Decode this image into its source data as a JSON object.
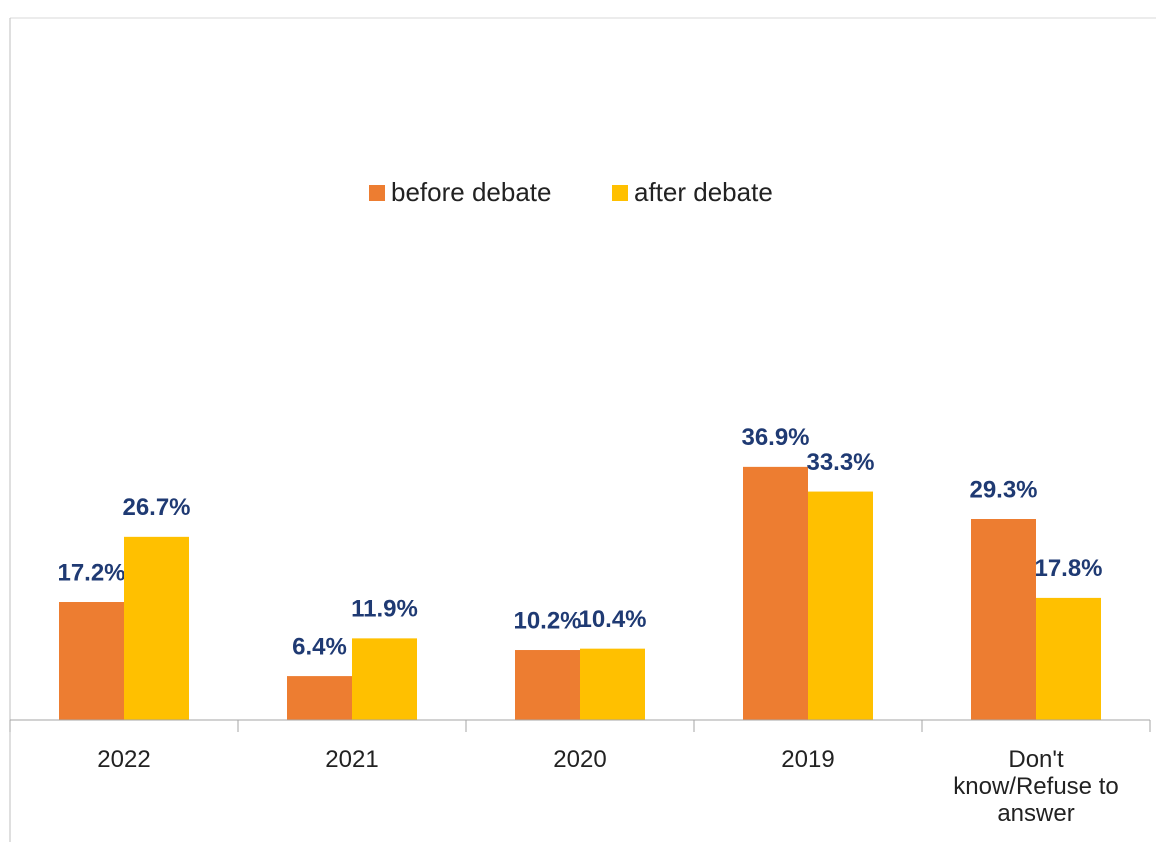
{
  "chart_data": {
    "type": "bar",
    "categories": [
      "2022",
      "2021",
      "2020",
      "2019",
      "Don't know/Refuse to answer"
    ],
    "series": [
      {
        "name": "before debate",
        "color": "#ed7d31",
        "values": [
          17.2,
          6.4,
          10.2,
          36.9,
          29.3
        ],
        "value_labels": [
          "17.2%",
          "6.4%",
          "10.2%",
          "36.9%",
          "29.3%"
        ]
      },
      {
        "name": "after debate",
        "color": "#ffc000",
        "values": [
          26.7,
          11.9,
          10.4,
          33.3,
          17.8
        ],
        "value_labels": [
          "26.7%",
          "11.9%",
          "10.4%",
          "33.3%",
          "17.8%"
        ]
      }
    ],
    "ylim": [
      0,
      40
    ],
    "grid": false,
    "legend": "top"
  }
}
